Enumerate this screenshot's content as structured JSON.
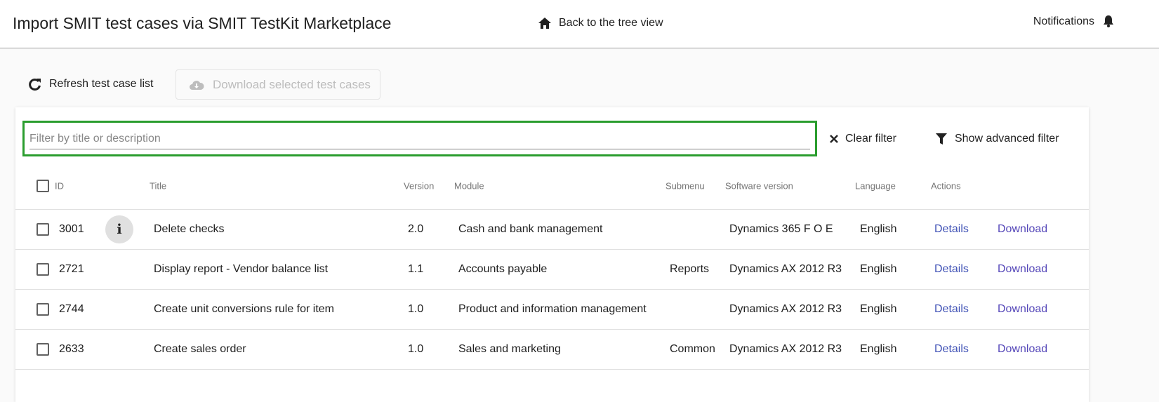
{
  "header": {
    "title": "Import SMIT test cases via SMIT TestKit Marketplace",
    "back_label": "Back to the tree view",
    "notifications_label": "Notifications"
  },
  "toolbar": {
    "refresh_label": "Refresh test case list",
    "download_selected_label": "Download selected test cases"
  },
  "filter": {
    "placeholder": "Filter by title or description",
    "value": "",
    "clear_label": "Clear filter",
    "advanced_label": "Show advanced filter",
    "highlight_color": "#2a9d2e"
  },
  "table": {
    "columns": [
      "ID",
      "Title",
      "Version",
      "Module",
      "Submenu",
      "Software version",
      "Language",
      "Actions"
    ],
    "rows": [
      {
        "id": "3001",
        "title": "Delete checks",
        "version": "2.0",
        "module": "Cash and bank management",
        "submenu": "",
        "software": "Dynamics 365 F O E",
        "language": "English",
        "details": "Details",
        "download": "Download",
        "has_info": true
      },
      {
        "id": "2721",
        "title": "Display report - Vendor balance list",
        "version": "1.1",
        "module": "Accounts payable",
        "submenu": "Reports",
        "software": "Dynamics AX 2012 R3",
        "language": "English",
        "details": "Details",
        "download": "Download"
      },
      {
        "id": "2744",
        "title": "Create unit conversions rule for item",
        "version": "1.0",
        "module": "Product and information management",
        "submenu": "",
        "software": "Dynamics AX 2012 R3",
        "language": "English",
        "details": "Details",
        "download": "Download"
      },
      {
        "id": "2633",
        "title": "Create sales order",
        "version": "1.0",
        "module": "Sales and marketing",
        "submenu": "Common",
        "software": "Dynamics AX 2012 R3",
        "language": "English",
        "details": "Details",
        "download": "Download"
      }
    ]
  },
  "colors": {
    "link": "#3f51b5",
    "disabled": "#bdbdbd"
  }
}
